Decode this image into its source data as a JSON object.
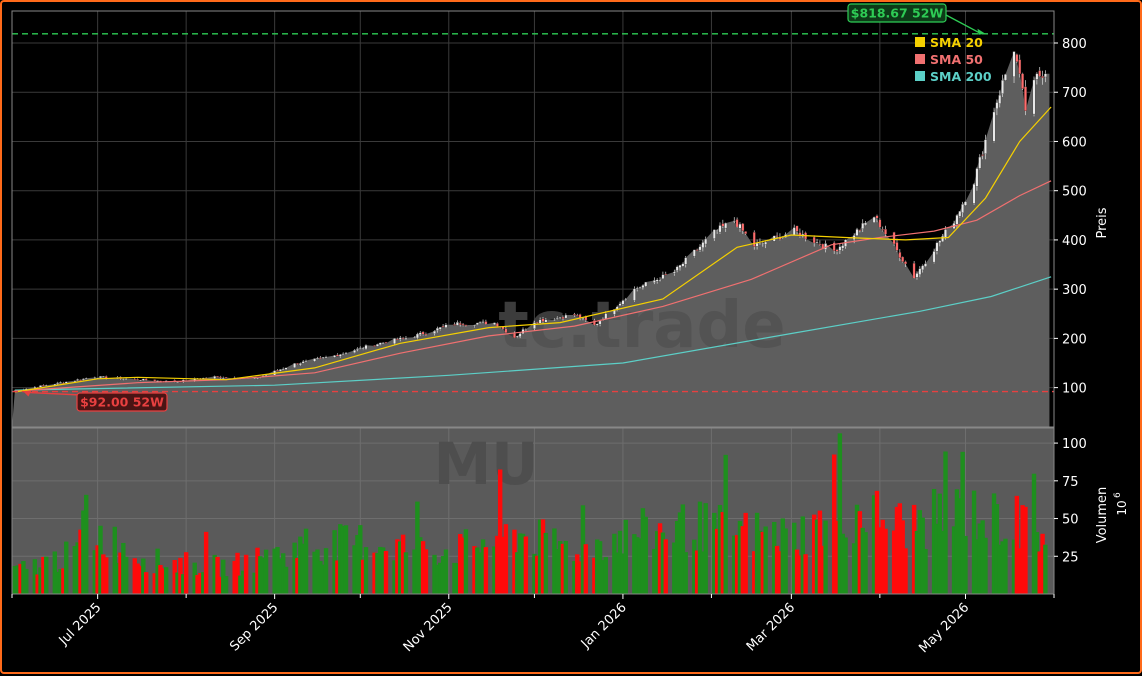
{
  "chart_data": {
    "type": "candlestick",
    "ticker_watermark": "MU",
    "site_watermark": "tc.trade",
    "price_axis": {
      "label": "Preis",
      "ticks": [
        100,
        200,
        300,
        400,
        500,
        600,
        700,
        800
      ],
      "ylim": [
        20,
        865
      ]
    },
    "volume_axis": {
      "label": "Volumen",
      "exponent_label": "10",
      "exponent": "6",
      "ticks": [
        25,
        50,
        75,
        100
      ],
      "ylim": [
        0,
        110
      ]
    },
    "x_axis": {
      "start": "2025-06-01",
      "end": "2026-06-01",
      "ticks": [
        {
          "date": "2025-07-01",
          "label": "Jul 2025"
        },
        {
          "date": "2025-09-01",
          "label": "Sep 2025"
        },
        {
          "date": "2025-11-01",
          "label": "Nov 2025"
        },
        {
          "date": "2026-01-01",
          "label": "Jan 2026"
        },
        {
          "date": "2026-03-01",
          "label": "Mar 2026"
        },
        {
          "date": "2026-05-01",
          "label": "May 2026"
        }
      ],
      "minor_ticks": [
        "2025-06-01",
        "2025-08-01",
        "2025-10-01",
        "2025-12-01",
        "2026-02-01",
        "2026-04-01",
        "2026-06-01"
      ]
    },
    "high_52w": {
      "value": 818.67,
      "label": "$818.67 52W",
      "date": "2026-05-08",
      "color": "#2ecc55"
    },
    "low_52w": {
      "value": 92.0,
      "label": "$92.00 52W",
      "date": "2025-06-05",
      "color": "#e84040"
    },
    "legend": [
      {
        "name": "SMA 20",
        "color": "#f5d000"
      },
      {
        "name": "SMA 50",
        "color": "#f07070"
      },
      {
        "name": "SMA 200",
        "color": "#5ccfc7"
      }
    ],
    "close_series": [
      [
        "2025-06-02",
        94
      ],
      [
        "2025-06-16",
        108
      ],
      [
        "2025-06-30",
        122
      ],
      [
        "2025-07-14",
        117
      ],
      [
        "2025-07-28",
        112
      ],
      [
        "2025-08-11",
        122
      ],
      [
        "2025-08-25",
        118
      ],
      [
        "2025-09-08",
        148
      ],
      [
        "2025-09-22",
        165
      ],
      [
        "2025-10-06",
        188
      ],
      [
        "2025-10-20",
        205
      ],
      [
        "2025-11-03",
        230
      ],
      [
        "2025-11-17",
        232
      ],
      [
        "2025-11-24",
        202
      ],
      [
        "2025-12-01",
        235
      ],
      [
        "2025-12-15",
        248
      ],
      [
        "2025-12-22",
        226
      ],
      [
        "2026-01-05",
        300
      ],
      [
        "2026-01-19",
        335
      ],
      [
        "2026-02-02",
        415
      ],
      [
        "2026-02-09",
        440
      ],
      [
        "2026-02-16",
        388
      ],
      [
        "2026-03-02",
        418
      ],
      [
        "2026-03-16",
        378
      ],
      [
        "2026-03-30",
        448
      ],
      [
        "2026-04-13",
        325
      ],
      [
        "2026-04-27",
        440
      ],
      [
        "2026-05-04",
        520
      ],
      [
        "2026-05-11",
        665
      ],
      [
        "2026-05-18",
        790
      ],
      [
        "2026-05-22",
        665
      ],
      [
        "2026-05-26",
        730
      ],
      [
        "2026-05-29",
        745
      ]
    ],
    "sma20": [
      [
        "2025-06-02",
        91
      ],
      [
        "2025-07-01",
        118
      ],
      [
        "2025-07-15",
        121
      ],
      [
        "2025-08-15",
        116
      ],
      [
        "2025-09-15",
        140
      ],
      [
        "2025-10-15",
        190
      ],
      [
        "2025-11-15",
        222
      ],
      [
        "2025-12-10",
        232
      ],
      [
        "2026-01-15",
        280
      ],
      [
        "2026-02-10",
        385
      ],
      [
        "2026-03-01",
        410
      ],
      [
        "2026-03-20",
        405
      ],
      [
        "2026-04-10",
        400
      ],
      [
        "2026-04-25",
        405
      ],
      [
        "2026-05-08",
        485
      ],
      [
        "2026-05-20",
        600
      ],
      [
        "2026-05-31",
        670
      ]
    ],
    "sma50": [
      [
        "2025-06-02",
        93
      ],
      [
        "2025-07-15",
        110
      ],
      [
        "2025-08-15",
        116
      ],
      [
        "2025-09-15",
        130
      ],
      [
        "2025-10-15",
        170
      ],
      [
        "2025-11-15",
        205
      ],
      [
        "2025-12-15",
        225
      ],
      [
        "2026-01-15",
        265
      ],
      [
        "2026-02-15",
        320
      ],
      [
        "2026-03-15",
        390
      ],
      [
        "2026-04-01",
        405
      ],
      [
        "2026-04-20",
        418
      ],
      [
        "2026-05-05",
        440
      ],
      [
        "2026-05-20",
        490
      ],
      [
        "2026-05-31",
        520
      ]
    ],
    "sma200": [
      [
        "2025-06-02",
        95
      ],
      [
        "2025-09-01",
        105
      ],
      [
        "2025-11-01",
        125
      ],
      [
        "2026-01-01",
        150
      ],
      [
        "2026-03-01",
        210
      ],
      [
        "2026-04-15",
        255
      ],
      [
        "2026-05-10",
        285
      ],
      [
        "2026-05-31",
        325
      ]
    ],
    "volume_profile": [
      [
        "2025-06-02",
        15
      ],
      [
        "2025-06-20",
        25
      ],
      [
        "2025-07-01",
        40
      ],
      [
        "2025-07-20",
        22
      ],
      [
        "2025-08-15",
        18
      ],
      [
        "2025-09-10",
        30
      ],
      [
        "2025-10-01",
        35
      ],
      [
        "2025-11-01",
        28
      ],
      [
        "2025-11-25",
        40
      ],
      [
        "2025-12-15",
        30
      ],
      [
        "2026-01-05",
        40
      ],
      [
        "2026-01-25",
        45
      ],
      [
        "2026-02-10",
        42
      ],
      [
        "2026-03-01",
        38
      ],
      [
        "2026-03-25",
        55
      ],
      [
        "2026-04-10",
        45
      ],
      [
        "2026-05-01",
        55
      ],
      [
        "2026-05-31",
        38
      ]
    ]
  }
}
